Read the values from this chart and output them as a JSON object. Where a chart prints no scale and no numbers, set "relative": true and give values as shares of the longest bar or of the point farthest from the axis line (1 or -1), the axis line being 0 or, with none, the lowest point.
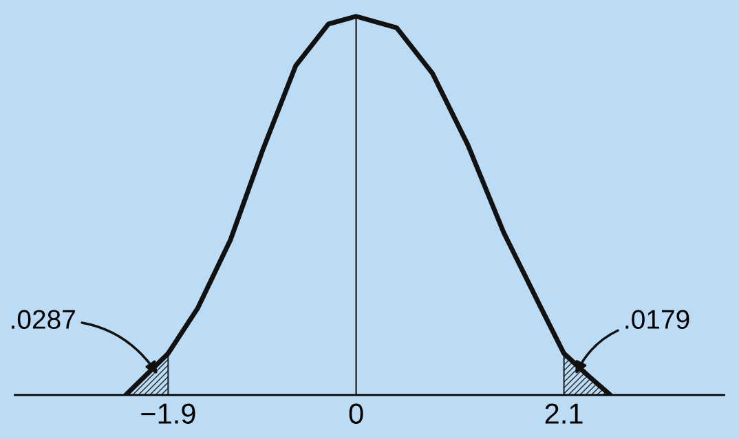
{
  "chart_data": {
    "type": "line",
    "relative": true,
    "x": [
      -2.33,
      -1.9,
      -1.6,
      -1.27,
      -0.94,
      -0.61,
      -0.28,
      0,
      0.41,
      0.77,
      1.13,
      1.49,
      1.85,
      2.1,
      2.35,
      2.57
    ],
    "series": [
      {
        "color": "#111111",
        "values": [
          0,
          0.11,
          0.23,
          0.41,
          0.65,
          0.87,
          0.98,
          1,
          0.97,
          0.85,
          0.66,
          0.43,
          0.24,
          0.11,
          0.05,
          0
        ]
      },
      {
        "type": "area",
        "color": "#222222",
        "x": [
          -2.33,
          -1.9
        ],
        "values": [
          0,
          0.11
        ]
      },
      {
        "type": "area",
        "color": "#222222",
        "x": [
          2.1,
          2.35,
          2.57
        ],
        "values": [
          0.11,
          0.05,
          0
        ]
      }
    ],
    "xlim": [
      -3.45,
      3.72
    ],
    "xticks": [
      {
        "value": -1.9,
        "label": "−1.9"
      },
      0,
      2.1
    ],
    "ref_lines": [
      {
        "axis": "x",
        "value": 0,
        "color": "#111111"
      }
    ],
    "annotations": [
      ".0287",
      ".0179"
    ],
    "grid": false,
    "legend": false,
    "marker": "none",
    "line_style": "solid"
  }
}
